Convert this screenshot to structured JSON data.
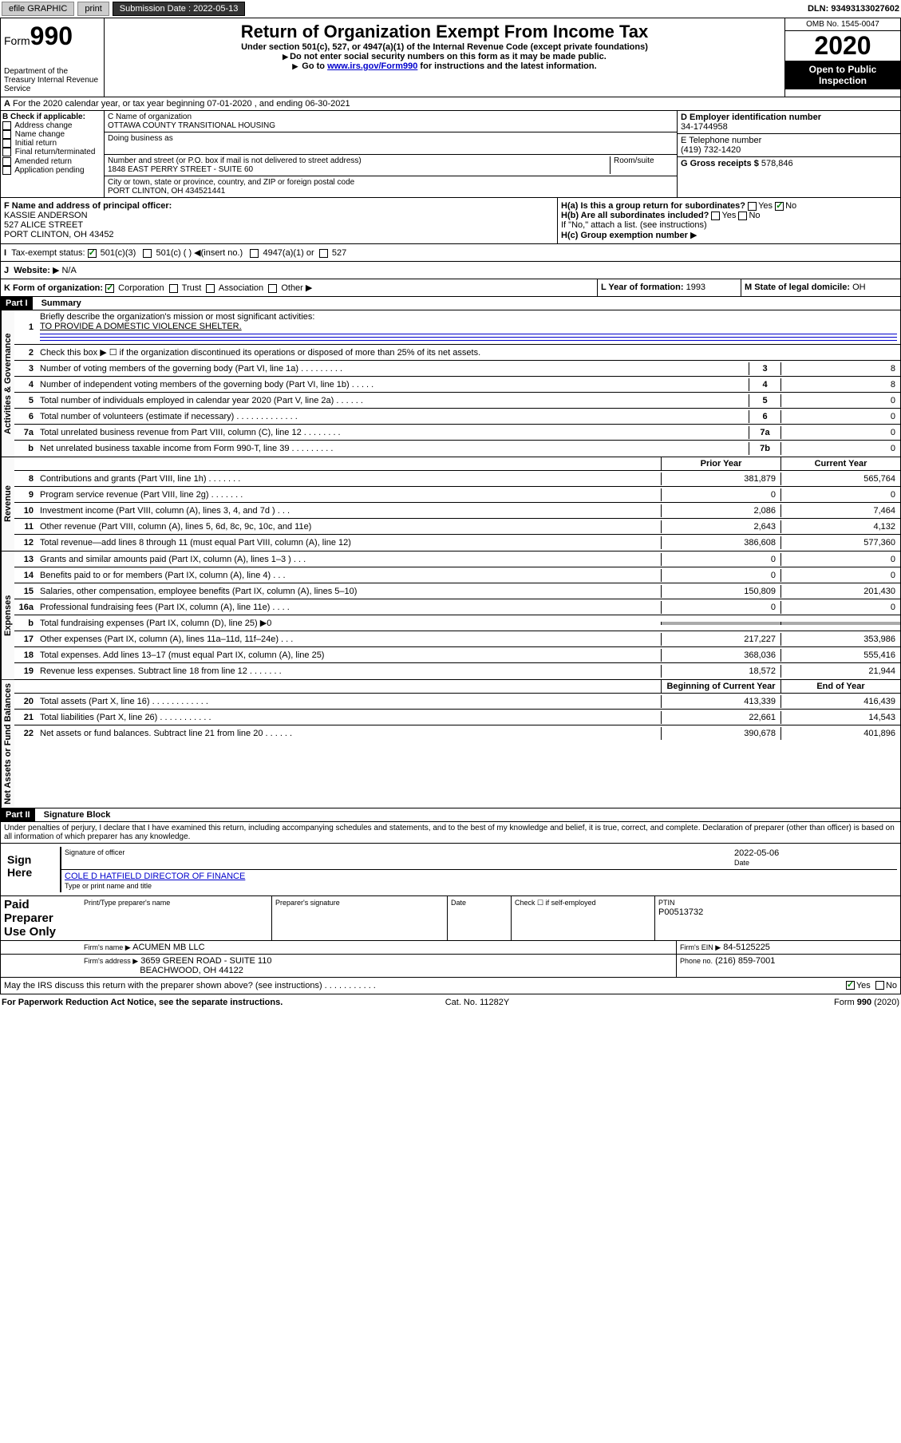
{
  "topbar": {
    "efile": "efile GRAPHIC",
    "print": "print",
    "submission_label": "Submission Date : 2022-05-13",
    "dln_label": "DLN: 93493133027602"
  },
  "header": {
    "form_prefix": "Form",
    "form_number": "990",
    "dept": "Department of the Treasury\nInternal Revenue Service",
    "title": "Return of Organization Exempt From Income Tax",
    "sub1": "Under section 501(c), 527, or 4947(a)(1) of the Internal Revenue Code (except private foundations)",
    "sub2": "Do not enter social security numbers on this form as it may be made public.",
    "sub3_pre": "Go to ",
    "sub3_link": "www.irs.gov/Form990",
    "sub3_post": " for instructions and the latest information.",
    "omb": "OMB No. 1545-0047",
    "year": "2020",
    "open": "Open to Public Inspection"
  },
  "period": {
    "line": "For the 2020 calendar year, or tax year beginning 07-01-2020    , and ending 06-30-2021"
  },
  "sectionB": {
    "label": "B Check if applicable:",
    "opts": [
      "Address change",
      "Name change",
      "Initial return",
      "Final return/terminated",
      "Amended return",
      "Application pending"
    ]
  },
  "sectionC": {
    "name_label": "C Name of organization",
    "name": "OTTAWA COUNTY TRANSITIONAL HOUSING",
    "dba_label": "Doing business as",
    "addr_label": "Number and street (or P.O. box if mail is not delivered to street address)",
    "room_label": "Room/suite",
    "addr": "1848 EAST PERRY STREET - SUITE 60",
    "city_label": "City or town, state or province, country, and ZIP or foreign postal code",
    "city": "PORT CLINTON, OH  434521441"
  },
  "sectionD": {
    "label": "D Employer identification number",
    "ein": "34-1744958"
  },
  "sectionE": {
    "label": "E Telephone number",
    "phone": "(419) 732-1420"
  },
  "sectionG": {
    "label": "G Gross receipts $",
    "amount": "578,846"
  },
  "sectionF": {
    "label": "F Name and address of principal officer:",
    "name": "KASSIE ANDERSON",
    "addr1": "527 ALICE STREET",
    "addr2": "PORT CLINTON, OH  43452"
  },
  "sectionH": {
    "a_label": "H(a)  Is this a group return for subordinates?",
    "b_label": "H(b)  Are all subordinates included?",
    "attach": "If \"No,\" attach a list. (see instructions)",
    "c_label": "H(c)  Group exemption number",
    "yes": "Yes",
    "no": "No"
  },
  "sectionI": {
    "label": "Tax-exempt status:",
    "o1": "501(c)(3)",
    "o2": "501(c) (  )",
    "o2b": "(insert no.)",
    "o3": "4947(a)(1) or",
    "o4": "527"
  },
  "sectionJ": {
    "label": "Website:",
    "value": "N/A"
  },
  "sectionK": {
    "label": "K Form of organization:",
    "o1": "Corporation",
    "o2": "Trust",
    "o3": "Association",
    "o4": "Other"
  },
  "sectionL": {
    "label": "L Year of formation:",
    "value": "1993"
  },
  "sectionM": {
    "label": "M State of legal domicile:",
    "value": "OH"
  },
  "part1": {
    "title": "Part I",
    "summary": "Summary",
    "q1": "Briefly describe the organization's mission or most significant activities:",
    "q1_ans": "TO PROVIDE A DOMESTIC VIOLENCE SHELTER.",
    "q2": "Check this box ▶ ☐  if the organization discontinued its operations or disposed of more than 25% of its net assets.",
    "lines_gov": [
      {
        "n": "3",
        "label": "Number of voting members of the governing body (Part VI, line 1a)   .    .    .    .    .    .    .    .    .",
        "cell": "3",
        "val": "8"
      },
      {
        "n": "4",
        "label": "Number of independent voting members of the governing body (Part VI, line 1b)   .    .    .    .    .",
        "cell": "4",
        "val": "8"
      },
      {
        "n": "5",
        "label": "Total number of individuals employed in calendar year 2020 (Part V, line 2a)   .    .    .    .    .    .",
        "cell": "5",
        "val": "0"
      },
      {
        "n": "6",
        "label": "Total number of volunteers (estimate if necessary)   .    .    .    .    .    .    .    .    .    .    .    .    .",
        "cell": "6",
        "val": "0"
      },
      {
        "n": "7a",
        "label": "Total unrelated business revenue from Part VIII, column (C), line 12   .    .    .    .    .    .    .    .",
        "cell": "7a",
        "val": "0"
      },
      {
        "n": "b",
        "label": "Net unrelated business taxable income from Form 990-T, line 39   .    .    .    .    .    .    .    .    .",
        "cell": "7b",
        "val": "0"
      }
    ],
    "prior_year": "Prior Year",
    "current_year": "Current Year",
    "lines_rev": [
      {
        "n": "8",
        "label": "Contributions and grants (Part VIII, line 1h)   .    .    .    .    .    .    .",
        "p": "381,879",
        "c": "565,764"
      },
      {
        "n": "9",
        "label": "Program service revenue (Part VIII, line 2g)   .    .    .    .    .    .    .",
        "p": "0",
        "c": "0"
      },
      {
        "n": "10",
        "label": "Investment income (Part VIII, column (A), lines 3, 4, and 7d )   .    .    .",
        "p": "2,086",
        "c": "7,464"
      },
      {
        "n": "11",
        "label": "Other revenue (Part VIII, column (A), lines 5, 6d, 8c, 9c, 10c, and 11e)",
        "p": "2,643",
        "c": "4,132"
      },
      {
        "n": "12",
        "label": "Total revenue—add lines 8 through 11 (must equal Part VIII, column (A), line 12)",
        "p": "386,608",
        "c": "577,360"
      }
    ],
    "lines_exp": [
      {
        "n": "13",
        "label": "Grants and similar amounts paid (Part IX, column (A), lines 1–3 )   .    .    .",
        "p": "0",
        "c": "0"
      },
      {
        "n": "14",
        "label": "Benefits paid to or for members (Part IX, column (A), line 4)   .    .    .",
        "p": "0",
        "c": "0"
      },
      {
        "n": "15",
        "label": "Salaries, other compensation, employee benefits (Part IX, column (A), lines 5–10)",
        "p": "150,809",
        "c": "201,430"
      },
      {
        "n": "16a",
        "label": "Professional fundraising fees (Part IX, column (A), line 11e)   .    .    .    .",
        "p": "0",
        "c": "0"
      },
      {
        "n": "b",
        "label": "Total fundraising expenses (Part IX, column (D), line 25) ▶0",
        "p": "",
        "c": "",
        "shaded": true
      },
      {
        "n": "17",
        "label": "Other expenses (Part IX, column (A), lines 11a–11d, 11f–24e)   .    .    .",
        "p": "217,227",
        "c": "353,986"
      },
      {
        "n": "18",
        "label": "Total expenses. Add lines 13–17 (must equal Part IX, column (A), line 25)",
        "p": "368,036",
        "c": "555,416"
      },
      {
        "n": "19",
        "label": "Revenue less expenses. Subtract line 18 from line 12   .    .    .    .    .    .    .",
        "p": "18,572",
        "c": "21,944"
      }
    ],
    "begin_year": "Beginning of Current Year",
    "end_year": "End of Year",
    "lines_net": [
      {
        "n": "20",
        "label": "Total assets (Part X, line 16)   .    .    .    .    .    .    .    .    .    .    .    .",
        "p": "413,339",
        "c": "416,439"
      },
      {
        "n": "21",
        "label": "Total liabilities (Part X, line 26)   .    .    .    .    .    .    .    .    .    .    .",
        "p": "22,661",
        "c": "14,543"
      },
      {
        "n": "22",
        "label": "Net assets or fund balances. Subtract line 21 from line 20   .    .    .    .    .    .",
        "p": "390,678",
        "c": "401,896"
      }
    ]
  },
  "part2": {
    "title": "Part II",
    "name": "Signature Block",
    "perjury": "Under penalties of perjury, I declare that I have examined this return, including accompanying schedules and statements, and to the best of my knowledge and belief, it is true, correct, and complete. Declaration of preparer (other than officer) is based on all information of which preparer has any knowledge.",
    "sign_here": "Sign Here",
    "sig_officer": "Signature of officer",
    "date_label": "Date",
    "sig_date": "2022-05-06",
    "officer_name": "COLE D HATFIELD  DIRECTOR OF FINANCE",
    "type_name": "Type or print name and title",
    "paid": "Paid Preparer Use Only",
    "prep_name_label": "Print/Type preparer's name",
    "prep_sig_label": "Preparer's signature",
    "check_if": "Check ☐ if self-employed",
    "ptin_label": "PTIN",
    "ptin": "P00513732",
    "firm_name_label": "Firm's name    ▶",
    "firm_name": "ACUMEN MB LLC",
    "firm_ein_label": "Firm's EIN ▶",
    "firm_ein": "84-5125225",
    "firm_addr_label": "Firm's address ▶",
    "firm_addr1": "3659 GREEN ROAD - SUITE 110",
    "firm_addr2": "BEACHWOOD, OH  44122",
    "phone_label": "Phone no.",
    "phone": "(216) 859-7001",
    "discuss": "May the IRS discuss this return with the preparer shown above? (see instructions)   .    .    .    .    .    .    .    .    .    .    .",
    "yes": "Yes",
    "no": "No"
  },
  "footer": {
    "left": "For Paperwork Reduction Act Notice, see the separate instructions.",
    "mid": "Cat. No. 11282Y",
    "right": "Form 990 (2020)"
  },
  "vert_labels": {
    "gov": "Activities & Governance",
    "rev": "Revenue",
    "exp": "Expenses",
    "net": "Net Assets or Fund Balances"
  }
}
